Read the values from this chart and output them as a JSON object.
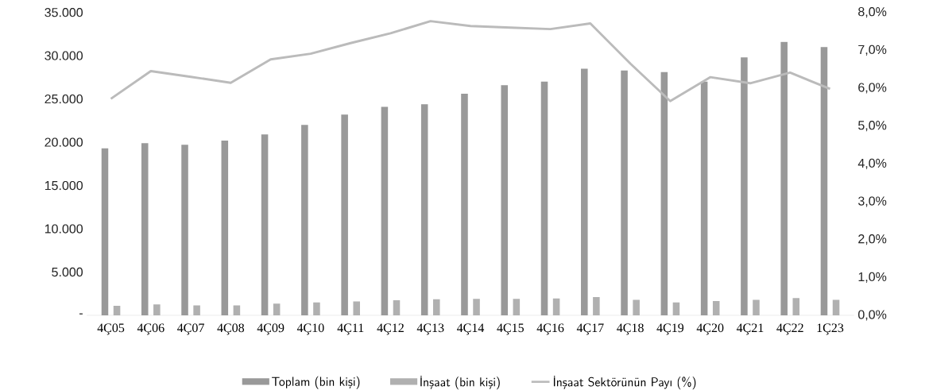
{
  "chart_data": {
    "type": "bar",
    "categories": [
      "4Ç05",
      "4Ç06",
      "4Ç07",
      "4Ç08",
      "4Ç09",
      "4Ç10",
      "4Ç11",
      "4Ç12",
      "4Ç13",
      "4Ç14",
      "4Ç15",
      "4Ç16",
      "4Ç17",
      "4Ç18",
      "4Ç19",
      "4Ç20",
      "4Ç21",
      "4Ç22",
      "1Ç23"
    ],
    "series": [
      {
        "name": "Toplam (bin kişi)",
        "color": "#999999",
        "values": [
          19300,
          19900,
          19700,
          20200,
          20900,
          22000,
          23200,
          24100,
          24400,
          25600,
          26600,
          27000,
          28500,
          28300,
          28100,
          27000,
          29800,
          31600,
          31000
        ]
      },
      {
        "name": "İnşaat (bin kişi)",
        "color": "#b0b0b0",
        "values": [
          1100,
          1250,
          1150,
          1150,
          1350,
          1500,
          1600,
          1750,
          1850,
          1900,
          1900,
          1950,
          2100,
          1800,
          1500,
          1650,
          1800,
          2000,
          1800
        ]
      },
      {
        "name": "İnşaat Sektörünün Payı (%)",
        "type": "line",
        "axis": "y2",
        "color": "#bbbbbb",
        "values": [
          5.72,
          6.45,
          6.3,
          6.14,
          6.76,
          6.91,
          7.19,
          7.45,
          7.77,
          7.64,
          7.6,
          7.56,
          7.71,
          6.65,
          5.66,
          6.29,
          6.13,
          6.41,
          5.98
        ]
      }
    ],
    "ylim": [
      0,
      35000
    ],
    "yticks": [
      {
        "value": 0,
        "label": "-"
      },
      {
        "value": 5000,
        "label": "5.000"
      },
      {
        "value": 10000,
        "label": "10.000"
      },
      {
        "value": 15000,
        "label": "15.000"
      },
      {
        "value": 20000,
        "label": "20.000"
      },
      {
        "value": 25000,
        "label": "25.000"
      },
      {
        "value": 30000,
        "label": "30.000"
      },
      {
        "value": 35000,
        "label": "35.000"
      }
    ],
    "y2lim": [
      0,
      8
    ],
    "y2ticks": [
      {
        "value": 0,
        "label": "0,0%"
      },
      {
        "value": 1,
        "label": "1,0%"
      },
      {
        "value": 2,
        "label": "2,0%"
      },
      {
        "value": 3,
        "label": "3,0%"
      },
      {
        "value": 4,
        "label": "4,0%"
      },
      {
        "value": 5,
        "label": "5,0%"
      },
      {
        "value": 6,
        "label": "6,0%"
      },
      {
        "value": 7,
        "label": "7,0%"
      },
      {
        "value": 8,
        "label": "8,0%"
      }
    ],
    "grid": false,
    "legend": "bottom",
    "marker": "none",
    "line_style": "solid"
  }
}
